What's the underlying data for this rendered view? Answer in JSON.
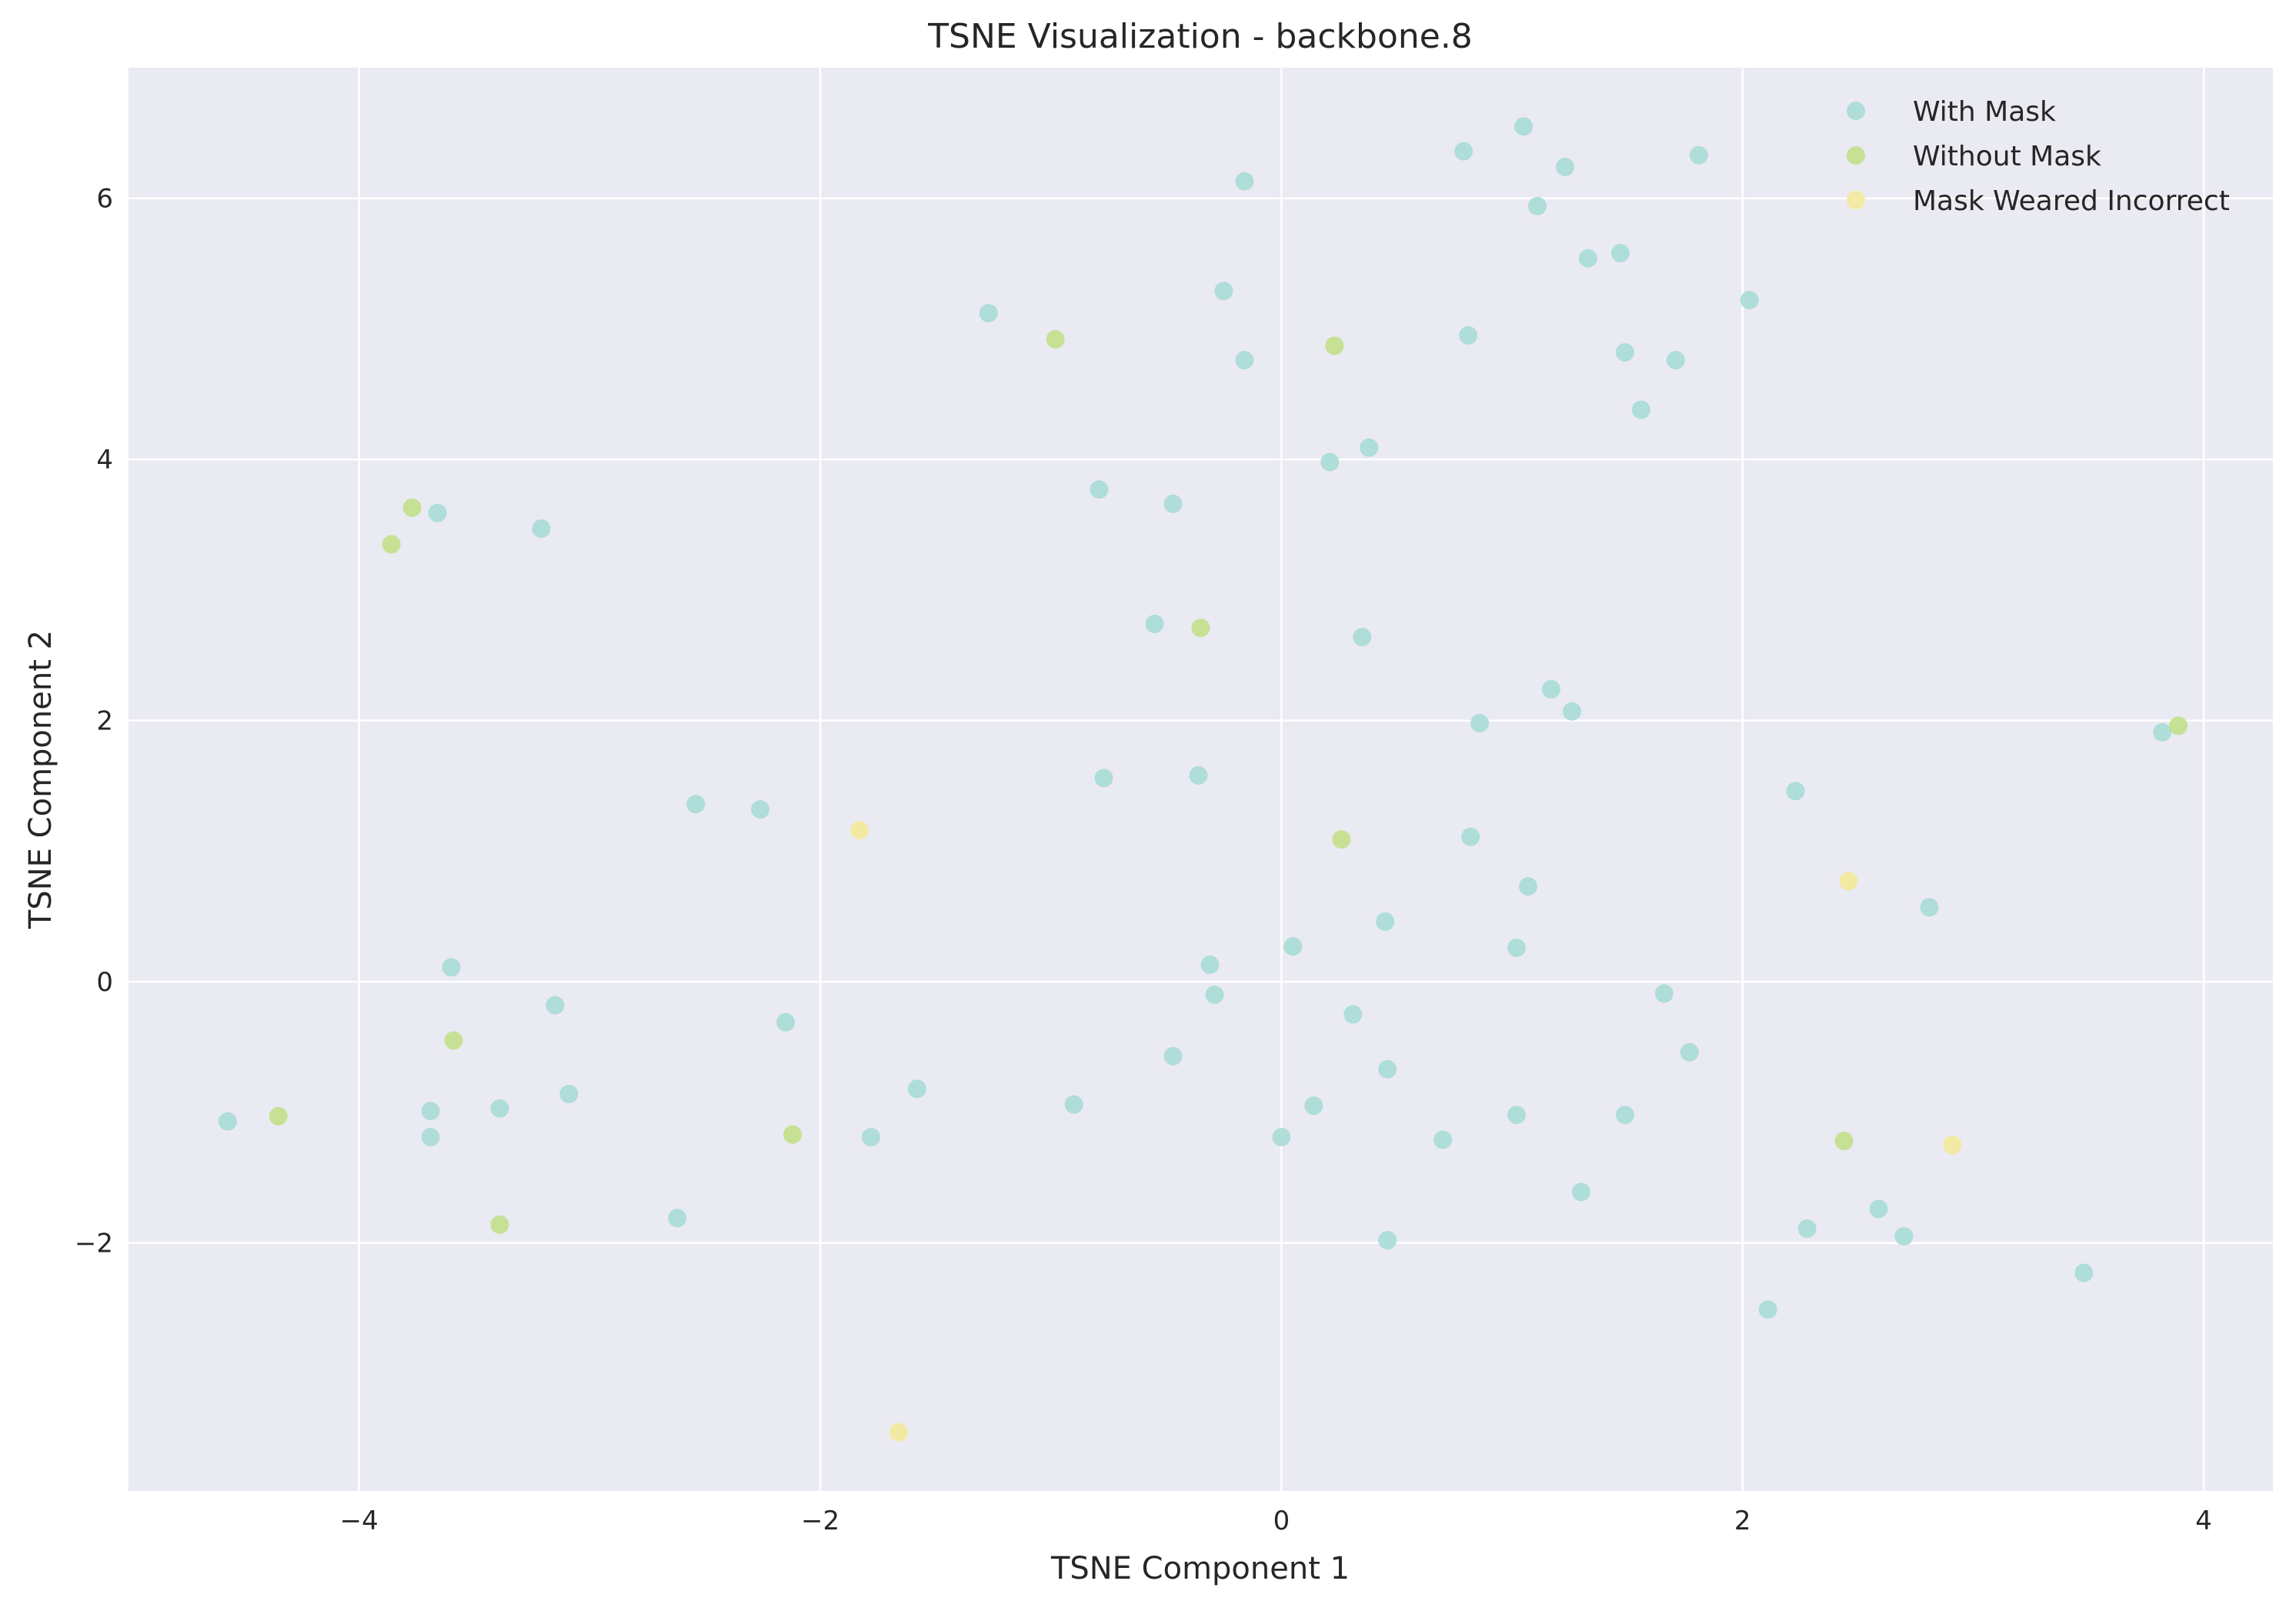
{
  "chart_data": {
    "type": "scatter",
    "title": "TSNE Visualization - backbone.8",
    "xlabel": "TSNE Component 1",
    "ylabel": "TSNE Component 2",
    "xlim": [
      -5.0,
      4.3
    ],
    "ylim": [
      -3.9,
      7.0
    ],
    "xticks": [
      -4,
      -2,
      0,
      2,
      4
    ],
    "yticks": [
      -2,
      0,
      2,
      4,
      6
    ],
    "grid": true,
    "legend_position": "top-right",
    "background_color": "#eaeaf2",
    "grid_color": "#ffffff",
    "series": [
      {
        "name": "With Mask",
        "color": "#a8dbd6",
        "points": [
          [
            1.05,
            6.55
          ],
          [
            0.79,
            6.36
          ],
          [
            1.23,
            6.24
          ],
          [
            1.81,
            6.33
          ],
          [
            -0.16,
            6.13
          ],
          [
            1.11,
            5.94
          ],
          [
            1.33,
            5.54
          ],
          [
            1.47,
            5.58
          ],
          [
            -0.25,
            5.29
          ],
          [
            2.03,
            5.22
          ],
          [
            -1.27,
            5.12
          ],
          [
            0.81,
            4.95
          ],
          [
            1.49,
            4.82
          ],
          [
            1.71,
            4.76
          ],
          [
            -0.16,
            4.76
          ],
          [
            1.56,
            4.38
          ],
          [
            0.38,
            4.09
          ],
          [
            0.21,
            3.98
          ],
          [
            -0.79,
            3.77
          ],
          [
            -0.47,
            3.66
          ],
          [
            -3.66,
            3.59
          ],
          [
            -3.21,
            3.47
          ],
          [
            -0.55,
            2.74
          ],
          [
            0.35,
            2.64
          ],
          [
            1.17,
            2.24
          ],
          [
            1.26,
            2.07
          ],
          [
            0.86,
            1.98
          ],
          [
            3.82,
            1.91
          ],
          [
            -0.36,
            1.58
          ],
          [
            -0.77,
            1.56
          ],
          [
            2.23,
            1.46
          ],
          [
            -2.54,
            1.36
          ],
          [
            -2.26,
            1.32
          ],
          [
            0.82,
            1.11
          ],
          [
            1.07,
            0.73
          ],
          [
            2.81,
            0.57
          ],
          [
            0.45,
            0.46
          ],
          [
            0.05,
            0.27
          ],
          [
            1.02,
            0.26
          ],
          [
            -0.31,
            0.13
          ],
          [
            -3.6,
            0.11
          ],
          [
            -0.29,
            -0.1
          ],
          [
            1.66,
            -0.09
          ],
          [
            -3.15,
            -0.18
          ],
          [
            0.31,
            -0.25
          ],
          [
            -2.15,
            -0.31
          ],
          [
            1.77,
            -0.54
          ],
          [
            -0.47,
            -0.57
          ],
          [
            0.46,
            -0.67
          ],
          [
            -1.58,
            -0.82
          ],
          [
            -3.09,
            -0.86
          ],
          [
            -0.9,
            -0.94
          ],
          [
            0.14,
            -0.95
          ],
          [
            -3.39,
            -0.97
          ],
          [
            -3.69,
            -0.99
          ],
          [
            1.02,
            -1.02
          ],
          [
            1.49,
            -1.02
          ],
          [
            -4.57,
            -1.07
          ],
          [
            -3.69,
            -1.19
          ],
          [
            0.0,
            -1.19
          ],
          [
            -1.78,
            -1.19
          ],
          [
            0.7,
            -1.21
          ],
          [
            1.3,
            -1.61
          ],
          [
            -2.62,
            -1.81
          ],
          [
            2.59,
            -1.74
          ],
          [
            2.28,
            -1.89
          ],
          [
            2.7,
            -1.95
          ],
          [
            0.46,
            -1.98
          ],
          [
            3.48,
            -2.23
          ],
          [
            2.11,
            -2.51
          ]
        ]
      },
      {
        "name": "Without Mask",
        "color": "#c3e089",
        "points": [
          [
            -0.98,
            4.92
          ],
          [
            0.23,
            4.87
          ],
          [
            -3.77,
            3.63
          ],
          [
            -3.86,
            3.35
          ],
          [
            -0.35,
            2.71
          ],
          [
            3.89,
            1.96
          ],
          [
            0.26,
            1.09
          ],
          [
            -3.59,
            -0.45
          ],
          [
            -4.35,
            -1.03
          ],
          [
            -2.12,
            -1.17
          ],
          [
            2.44,
            -1.22
          ],
          [
            -3.39,
            -1.86
          ]
        ]
      },
      {
        "name": "Mask Weared Incorrect",
        "color": "#f4e99a",
        "points": [
          [
            -1.83,
            1.16
          ],
          [
            2.46,
            0.77
          ],
          [
            2.91,
            -1.25
          ],
          [
            -1.66,
            -3.45
          ]
        ]
      }
    ]
  }
}
